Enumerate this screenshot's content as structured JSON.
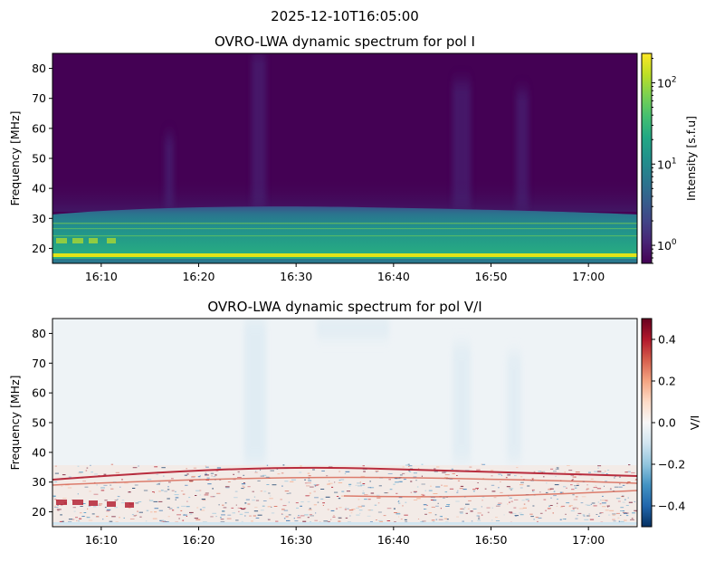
{
  "suptitle": "2025-12-10T16:05:00",
  "chart_data": [
    {
      "type": "heatmap",
      "title": "OVRO-LWA dynamic spectrum for pol I",
      "xlabel": "",
      "ylabel": "Frequency [MHz]",
      "x_ticks": [
        "16:10",
        "16:20",
        "16:30",
        "16:40",
        "16:50",
        "17:00"
      ],
      "x_range": [
        "16:05",
        "17:05"
      ],
      "y_ticks": [
        20,
        30,
        40,
        50,
        60,
        70,
        80
      ],
      "ylim": [
        15,
        85
      ],
      "colormap": "viridis",
      "colorbar": {
        "label": "Intensity [s.f.u]",
        "scale": "log",
        "range": [
          0.6,
          230
        ],
        "ticks": [
          {
            "base": "10",
            "exp": "0"
          },
          {
            "base": "10",
            "exp": "1"
          },
          {
            "base": "10",
            "exp": "2"
          }
        ]
      },
      "features": {
        "background_level_sfu": 0.7,
        "bright_band_mhz": [
          16,
          30
        ],
        "bright_band_level_sfu": 10,
        "narrow_line_mhz": 17,
        "narrow_line_level_sfu": 200
      }
    },
    {
      "type": "heatmap",
      "title": "OVRO-LWA dynamic spectrum for pol V/I",
      "xlabel": "",
      "ylabel": "Frequency [MHz]",
      "x_ticks": [
        "16:10",
        "16:20",
        "16:30",
        "16:40",
        "16:50",
        "17:00"
      ],
      "x_range": [
        "16:05",
        "17:05"
      ],
      "y_ticks": [
        20,
        30,
        40,
        50,
        60,
        70,
        80
      ],
      "ylim": [
        15,
        85
      ],
      "colormap": "RdBu_r",
      "colorbar": {
        "label": "V/I",
        "scale": "linear",
        "range": [
          -0.5,
          0.5
        ],
        "ticks": [
          "0.4",
          "0.2",
          "0.0",
          "−0.2",
          "−0.4"
        ]
      },
      "features": {
        "background_level": -0.03,
        "noisy_band_mhz": [
          16,
          35
        ]
      }
    }
  ]
}
